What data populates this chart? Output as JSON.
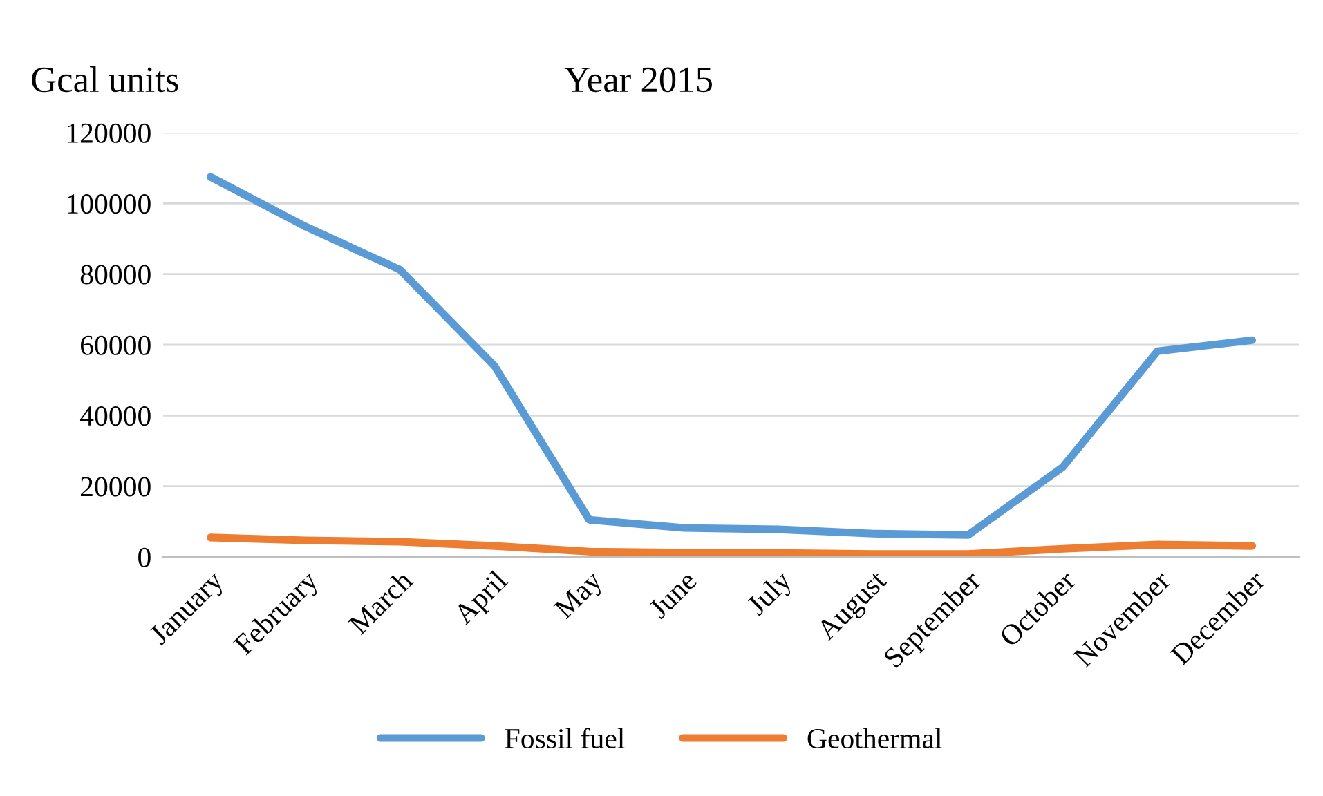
{
  "chart_data": {
    "type": "line",
    "title": "Year 2015",
    "ylabel": "Gcal units",
    "categories": [
      "January",
      "February",
      "March",
      "April",
      "May",
      "June",
      "July",
      "August",
      "September",
      "October",
      "November",
      "December"
    ],
    "series": [
      {
        "name": "Fossil fuel",
        "color": "#5b9bd5",
        "values": [
          107500,
          93500,
          81250,
          54000,
          10500,
          8200,
          7800,
          6600,
          6200,
          25400,
          58200,
          61300
        ]
      },
      {
        "name": "Geothermal",
        "color": "#ed7d31",
        "values": [
          5500,
          4700,
          4300,
          3100,
          1500,
          1200,
          1100,
          800,
          800,
          2300,
          3500,
          3100
        ]
      }
    ],
    "ylim": [
      0,
      120000
    ],
    "yticks": [
      0,
      20000,
      40000,
      60000,
      80000,
      100000,
      120000
    ],
    "grid": "y",
    "legend": "bottom",
    "marker": "none",
    "line_style": "solid"
  }
}
